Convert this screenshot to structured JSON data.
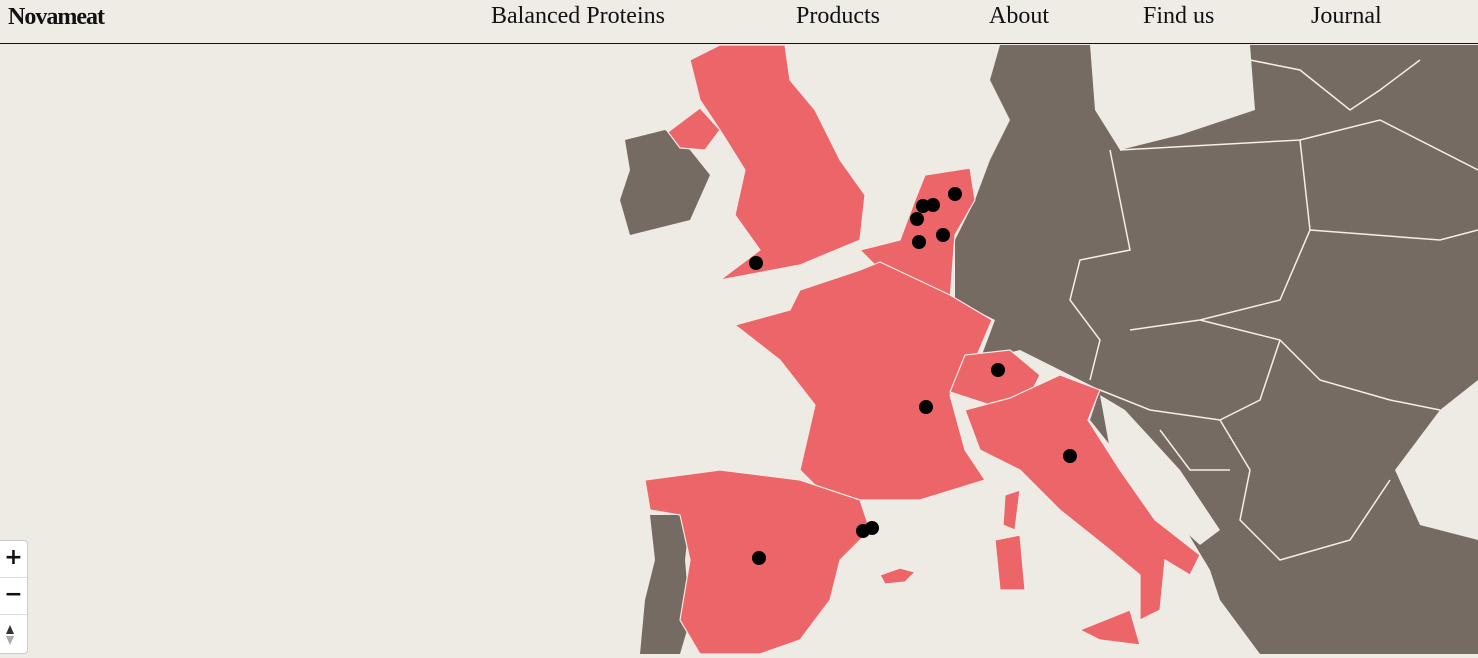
{
  "header": {
    "logo": "Novameat",
    "nav": [
      "Balanced Proteins",
      "Products",
      "About",
      "Find us",
      "Journal"
    ]
  },
  "map": {
    "zoom_in": "+",
    "zoom_out": "−"
  }
}
